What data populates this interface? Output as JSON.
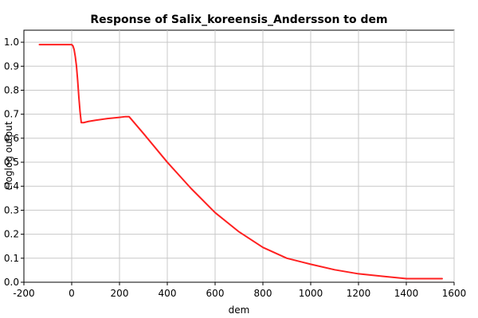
{
  "chart_data": {
    "type": "line",
    "title": "Response of Salix_koreensis_Andersson to dem",
    "xlabel": "dem",
    "ylabel": "cloglog output",
    "xlim": [
      -200,
      1600
    ],
    "ylim": [
      0.0,
      1.05
    ],
    "xticks": [
      -200,
      0,
      200,
      400,
      600,
      800,
      1000,
      1200,
      1400,
      1600
    ],
    "yticks": [
      0.0,
      0.1,
      0.2,
      0.3,
      0.4,
      0.5,
      0.6,
      0.7,
      0.8,
      0.9,
      1.0
    ],
    "grid": true,
    "series": [
      {
        "name": "",
        "color": "#ff2020",
        "x": [
          -135,
          0,
          5,
          10,
          15,
          20,
          25,
          30,
          35,
          40,
          50,
          70,
          100,
          150,
          200,
          225,
          240,
          300,
          400,
          500,
          600,
          700,
          800,
          900,
          1000,
          1100,
          1200,
          1300,
          1400,
          1550
        ],
        "y": [
          0.99,
          0.99,
          0.985,
          0.97,
          0.94,
          0.9,
          0.84,
          0.77,
          0.71,
          0.665,
          0.665,
          0.67,
          0.675,
          0.682,
          0.687,
          0.69,
          0.69,
          0.62,
          0.5,
          0.39,
          0.29,
          0.21,
          0.145,
          0.1,
          0.075,
          0.052,
          0.035,
          0.025,
          0.015,
          0.015
        ]
      }
    ]
  }
}
